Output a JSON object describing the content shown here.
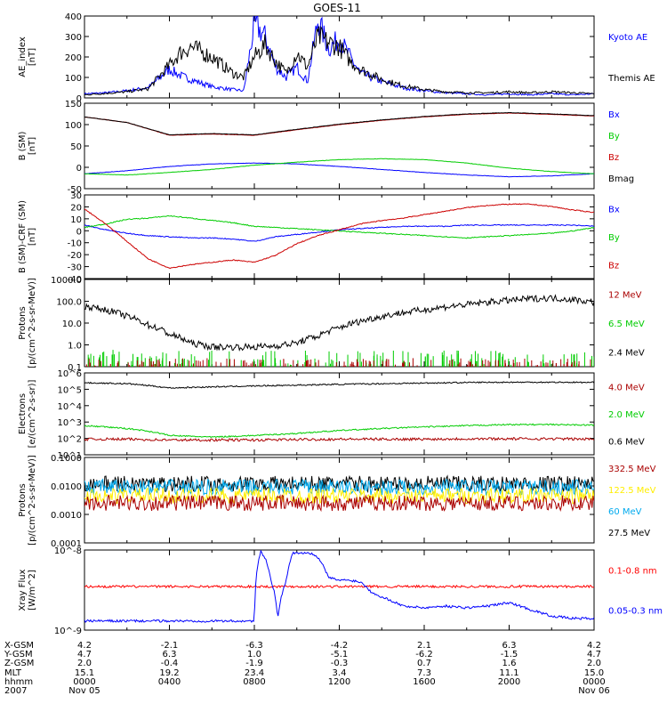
{
  "title": "GOES-11",
  "chart_data": [
    {
      "type": "line",
      "ylabel": [
        "AE_index",
        "[nT]"
      ],
      "yticks": [
        "400",
        "300",
        "200",
        "100",
        "0"
      ],
      "ylim": [
        0,
        400
      ],
      "legend": [
        "Kyoto AE",
        "Themis AE"
      ],
      "colors": [
        "#0000ff",
        "#000000"
      ],
      "x_hours": [
        0,
        1,
        2,
        3,
        4,
        4.5,
        5,
        6,
        7,
        7.5,
        8,
        8.5,
        9,
        9.5,
        10,
        10.5,
        11,
        11.5,
        12,
        12.5,
        13,
        14,
        15,
        16,
        17,
        18,
        19,
        20,
        21,
        22,
        23,
        24
      ],
      "series": [
        {
          "name": "Kyoto AE",
          "values": [
            20,
            25,
            35,
            50,
            140,
            110,
            90,
            55,
            40,
            35,
            360,
            300,
            150,
            100,
            150,
            80,
            380,
            240,
            290,
            200,
            120,
            80,
            50,
            35,
            25,
            20,
            15,
            20,
            15,
            20,
            15,
            20
          ]
        },
        {
          "name": "Themis AE",
          "values": [
            15,
            22,
            30,
            45,
            160,
            220,
            250,
            200,
            120,
            100,
            200,
            260,
            180,
            120,
            220,
            150,
            300,
            270,
            250,
            180,
            140,
            90,
            60,
            40,
            30,
            25,
            25,
            30,
            25,
            30,
            25,
            20
          ]
        }
      ]
    },
    {
      "type": "line",
      "ylabel": [
        "B (SM)",
        "[nT]"
      ],
      "yticks": [
        "150",
        "100",
        "50",
        "0",
        "-50"
      ],
      "ylim": [
        -50,
        150
      ],
      "legend": [
        "Bx",
        "By",
        "Bz",
        "Bmag"
      ],
      "colors": [
        "#0000ff",
        "#00cc00",
        "#cc0000",
        "#000000"
      ],
      "x_hours": [
        0,
        2,
        4,
        6,
        8,
        10,
        12,
        14,
        16,
        18,
        20,
        22,
        24
      ],
      "series": [
        {
          "name": "Bx",
          "values": [
            -15,
            -8,
            2,
            8,
            10,
            8,
            2,
            -5,
            -12,
            -18,
            -22,
            -20,
            -15
          ]
        },
        {
          "name": "By",
          "values": [
            -15,
            -18,
            -12,
            -5,
            5,
            12,
            18,
            20,
            18,
            10,
            -2,
            -10,
            -15
          ]
        },
        {
          "name": "Bz",
          "values": [
            118,
            105,
            75,
            78,
            75,
            88,
            100,
            110,
            118,
            124,
            127,
            124,
            120
          ]
        },
        {
          "name": "Bmag",
          "values": [
            118,
            105,
            76,
            79,
            76,
            89,
            101,
            111,
            119,
            125,
            128,
            125,
            121
          ]
        }
      ]
    },
    {
      "type": "line",
      "ylabel": [
        "B (SM)-CRF (SM)",
        "[nT]"
      ],
      "yticks": [
        "30",
        "20",
        "10",
        "0",
        "-10",
        "-20",
        "-30",
        "-40"
      ],
      "ylim": [
        -42,
        30
      ],
      "legend": [
        "Bx",
        "By",
        "Bz"
      ],
      "colors": [
        "#0000ff",
        "#00cc00",
        "#cc0000"
      ],
      "x_hours": [
        0,
        1,
        2,
        3,
        4,
        5,
        6,
        7,
        8,
        9,
        10,
        11,
        12,
        13,
        14,
        15,
        16,
        17,
        18,
        19,
        20,
        21,
        22,
        23,
        24
      ],
      "series": [
        {
          "name": "Bx",
          "values": [
            4,
            0,
            -3,
            -5,
            -6,
            -7,
            -7,
            -8,
            -10,
            -6,
            -4,
            -2,
            0,
            1,
            2,
            3,
            3,
            3,
            4,
            4,
            4,
            4,
            4,
            4,
            3
          ]
        },
        {
          "name": "By",
          "values": [
            2,
            5,
            9,
            10,
            12,
            10,
            8,
            6,
            3,
            2,
            1,
            0,
            -1,
            -2,
            -3,
            -4,
            -5,
            -6,
            -7,
            -6,
            -5,
            -4,
            -3,
            -1,
            2
          ]
        },
        {
          "name": "Bz",
          "values": [
            18,
            5,
            -10,
            -25,
            -33,
            -30,
            -28,
            -26,
            -28,
            -22,
            -12,
            -5,
            0,
            5,
            8,
            10,
            13,
            16,
            19,
            21,
            22,
            22,
            20,
            17,
            15
          ]
        }
      ]
    },
    {
      "type": "line",
      "scale": "log",
      "ylabel": [
        "Protons",
        "[p/(cm^2-s-sr-MeV)]"
      ],
      "yticks": [
        "1000.0",
        "100.0",
        "10.0",
        "1.0",
        "0.1"
      ],
      "ylim": [
        0.1,
        1000
      ],
      "legend": [
        "12 MeV",
        "6.5 MeV",
        "2.4 MeV"
      ],
      "colors": [
        "#aa0000",
        "#00cc00",
        "#000000"
      ],
      "x_hours": [
        0,
        1,
        2,
        3,
        4,
        5,
        6,
        7,
        8,
        9,
        10,
        11,
        12,
        13,
        14,
        15,
        16,
        17,
        18,
        19,
        20,
        21,
        22,
        23,
        24
      ],
      "series": [
        {
          "name": "2.4 MeV",
          "values": [
            60,
            40,
            20,
            8,
            3,
            1.2,
            0.8,
            0.8,
            0.8,
            0.9,
            1.2,
            2.5,
            6,
            12,
            20,
            30,
            40,
            55,
            70,
            90,
            110,
            130,
            140,
            120,
            90
          ]
        },
        {
          "name": "6.5 MeV",
          "values": [
            0.12,
            0.12,
            0.12,
            0.12,
            0.12,
            0.12,
            0.12,
            0.12,
            0.12,
            0.12,
            0.12,
            0.12,
            0.12,
            0.12,
            0.12,
            0.12,
            0.12,
            0.12,
            0.12,
            0.12,
            0.12,
            0.12,
            0.12,
            0.12,
            0.12
          ]
        },
        {
          "name": "12 MeV",
          "values": [
            0.1,
            0.1,
            0.1,
            0.1,
            0.1,
            0.1,
            0.1,
            0.1,
            0.1,
            0.1,
            0.1,
            0.1,
            0.1,
            0.1,
            0.1,
            0.1,
            0.1,
            0.1,
            0.1,
            0.1,
            0.1,
            0.1,
            0.1,
            0.1,
            0.1
          ]
        }
      ]
    },
    {
      "type": "line",
      "scale": "log",
      "ylabel": [
        "Electrons",
        "[e/(cm^2-s-sr)]"
      ],
      "yticks": [
        "10^6",
        "10^5",
        "10^4",
        "10^3",
        "10^2",
        "10^1"
      ],
      "ylim": [
        10,
        1000000
      ],
      "legend": [
        "4.0 MeV",
        "2.0 MeV",
        "0.6 MeV"
      ],
      "colors": [
        "#aa0000",
        "#00cc00",
        "#000000"
      ],
      "x_hours": [
        0,
        2,
        4,
        6,
        8,
        10,
        12,
        14,
        16,
        18,
        20,
        22,
        24
      ],
      "series": [
        {
          "name": "0.6 MeV",
          "values": [
            250000,
            220000,
            120000,
            140000,
            160000,
            180000,
            200000,
            220000,
            240000,
            260000,
            270000,
            270000,
            260000
          ]
        },
        {
          "name": "2.0 MeV",
          "values": [
            600,
            400,
            150,
            120,
            150,
            200,
            300,
            400,
            500,
            600,
            700,
            700,
            650
          ]
        },
        {
          "name": "4.0 MeV",
          "values": [
            90,
            90,
            80,
            80,
            80,
            85,
            90,
            90,
            90,
            95,
            95,
            95,
            90
          ]
        }
      ]
    },
    {
      "type": "line",
      "scale": "log",
      "ylabel": [
        "Protons",
        "[p/(cm^2-s-sr-MeV)]"
      ],
      "yticks": [
        "0.1000",
        "0.0100",
        "0.0010",
        "0.0001"
      ],
      "ylim": [
        0.0001,
        0.1
      ],
      "legend": [
        "332.5 MeV",
        "122.5 MeV",
        "60 MeV",
        "27.5 MeV"
      ],
      "colors": [
        "#aa0000",
        "#ffee00",
        "#00aaee",
        "#000000"
      ],
      "series": [
        {
          "name": "27.5 MeV",
          "level": 0.012
        },
        {
          "name": "60 MeV",
          "level": 0.009
        },
        {
          "name": "122.5 MeV",
          "level": 0.0045
        },
        {
          "name": "332.5 MeV",
          "level": 0.0025
        }
      ]
    },
    {
      "type": "line",
      "scale": "log",
      "ylabel": [
        "Xray Flux",
        "[W/m^2]"
      ],
      "yticks": [
        "10^-8",
        "10^-9"
      ],
      "ylim": [
        1e-09,
        1e-08
      ],
      "legend": [
        "0.1-0.8 nm",
        "0.05-0.3 nm"
      ],
      "colors": [
        "#ff0000",
        "#0000ff"
      ],
      "x_hours": [
        0,
        1,
        2,
        3,
        4,
        5,
        6,
        7,
        8,
        8.1,
        8.3,
        8.5,
        8.8,
        9,
        9.1,
        9.5,
        9.8,
        10,
        10.2,
        10.5,
        11,
        11.5,
        12,
        12.5,
        13,
        13.5,
        14,
        15,
        16,
        17,
        18,
        19,
        20,
        21,
        22,
        23,
        24
      ],
      "series": [
        {
          "name": "0.1-0.8 nm",
          "values": [
            3.5e-09,
            3.5e-09,
            3.5e-09,
            3.5e-09,
            3.5e-09,
            3.5e-09,
            3.5e-09,
            3.5e-09,
            3.5e-09,
            3.5e-09,
            3.5e-09,
            3.5e-09,
            3.5e-09,
            3.5e-09,
            3.5e-09,
            3.5e-09,
            3.5e-09,
            3.5e-09,
            3.5e-09,
            3.5e-09,
            3.5e-09,
            3.5e-09,
            3.5e-09,
            3.5e-09,
            3.5e-09,
            3.5e-09,
            3.5e-09,
            3.5e-09,
            3.5e-09,
            3.5e-09,
            3.5e-09,
            3.5e-09,
            3.5e-09,
            3.5e-09,
            3.5e-09,
            3.5e-09,
            3.5e-09
          ]
        },
        {
          "name": "0.05-0.3 nm",
          "values": [
            1.3e-09,
            1.3e-09,
            1.3e-09,
            1.3e-09,
            1.3e-09,
            1.3e-09,
            1.3e-09,
            1.3e-09,
            1.3e-09,
            5e-09,
            9.5e-09,
            8e-09,
            4e-09,
            2.5e-09,
            1.4e-09,
            4.2e-09,
            9e-09,
            9.5e-09,
            9e-09,
            9.5e-09,
            8e-09,
            4.5e-09,
            4.2e-09,
            4.2e-09,
            4e-09,
            3e-09,
            2.6e-09,
            2e-09,
            1.9e-09,
            2e-09,
            1.9e-09,
            2e-09,
            2.2e-09,
            1.8e-09,
            1.5e-09,
            1.4e-09,
            1.4e-09
          ]
        }
      ]
    }
  ],
  "axis": {
    "rows": [
      {
        "label": "X-GSM",
        "values": [
          "4.2",
          "-2.1",
          "-6.3",
          "-4.2",
          "2.1",
          "6.3",
          "4.2"
        ]
      },
      {
        "label": "Y-GSM",
        "values": [
          "4.7",
          "6.3",
          "1.0",
          "-5.1",
          "-6.2",
          "-1.5",
          "4.7"
        ]
      },
      {
        "label": "Z-GSM",
        "values": [
          "2.0",
          "-0.4",
          "-1.9",
          "-0.3",
          "0.7",
          "1.6",
          "2.0"
        ]
      },
      {
        "label": "MLT",
        "values": [
          "15.1",
          "19.2",
          "23.4",
          "3.4",
          "7.3",
          "11.1",
          "15.0"
        ]
      },
      {
        "label": "hhmm",
        "values": [
          "0000",
          "0400",
          "0800",
          "1200",
          "1600",
          "2000",
          "0000"
        ]
      }
    ],
    "date_row": {
      "label": "2007",
      "start": "Nov 05",
      "end": "Nov 06"
    }
  }
}
